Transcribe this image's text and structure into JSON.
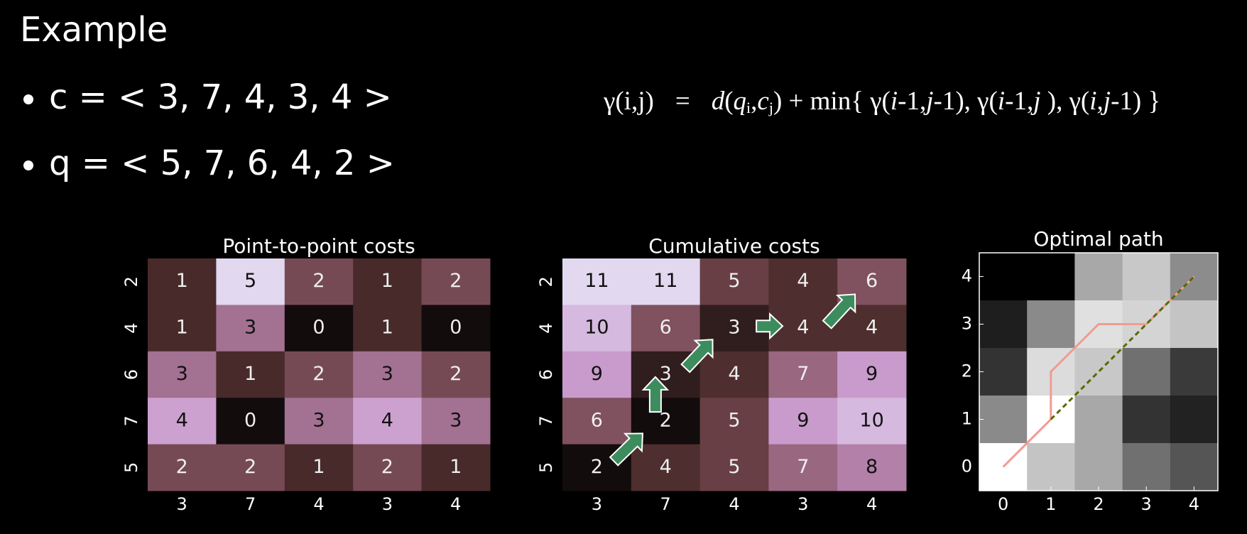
{
  "title": "Example",
  "bullets": [
    "c = < 3, 7, 4, 3, 4 >",
    "q = < 5, 7, 6, 4, 2 >"
  ],
  "formula": [
    "γ(i,j)",
    "=",
    "d",
    "(",
    "q",
    "i",
    ",",
    "c",
    "j",
    ") + min{ γ(",
    "i",
    "-1,",
    "j",
    "-1), γ(",
    "i",
    "-1,",
    "j",
    " ), γ(",
    "i",
    ",",
    "j",
    "-1) }"
  ],
  "chart_data": [
    {
      "type": "heatmap",
      "title": "Point-to-point costs",
      "x_categories": [
        "3",
        "7",
        "4",
        "3",
        "4"
      ],
      "y_categories": [
        "2",
        "4",
        "6",
        "7",
        "5"
      ],
      "values": [
        [
          1,
          5,
          2,
          1,
          2
        ],
        [
          1,
          3,
          0,
          1,
          0
        ],
        [
          3,
          1,
          2,
          3,
          2
        ],
        [
          4,
          0,
          3,
          4,
          3
        ],
        [
          2,
          2,
          1,
          2,
          1
        ]
      ]
    },
    {
      "type": "heatmap",
      "title": "Cumulative costs",
      "x_categories": [
        "3",
        "7",
        "4",
        "3",
        "4"
      ],
      "y_categories": [
        "2",
        "4",
        "6",
        "7",
        "5"
      ],
      "values": [
        [
          11,
          11,
          5,
          4,
          6
        ],
        [
          10,
          6,
          3,
          4,
          4
        ],
        [
          9,
          3,
          4,
          7,
          9
        ],
        [
          6,
          2,
          5,
          9,
          10
        ],
        [
          2,
          4,
          5,
          7,
          8
        ]
      ]
    },
    {
      "type": "path",
      "title": "Optimal path",
      "xlim": [
        -0.5,
        4.5
      ],
      "ylim": [
        -0.5,
        4.5
      ],
      "xticks": [
        0,
        1,
        2,
        3,
        4
      ],
      "yticks": [
        0,
        1,
        2,
        3,
        4
      ],
      "cell_colors": [
        [
          "#000000",
          "#000000",
          "#a8a8a8",
          "#c8c8c8",
          "#8c8c8c"
        ],
        [
          "#1e1e1e",
          "#8a8a8a",
          "#e0e0e0",
          "#d4d4d4",
          "#c4c4c4"
        ],
        [
          "#333333",
          "#dcdcdc",
          "#c8c8c8",
          "#707070",
          "#3a3a3a"
        ],
        [
          "#8a8a8a",
          "#ffffff",
          "#a8a8a8",
          "#333333",
          "#222222"
        ],
        [
          "#ffffff",
          "#c4c4c4",
          "#a8a8a8",
          "#707070",
          "#555555"
        ]
      ],
      "series": [
        {
          "color": "#f29a90",
          "x": [
            0,
            1,
            1,
            2,
            3,
            4
          ],
          "y": [
            0,
            1,
            2,
            3,
            3,
            4
          ]
        },
        {
          "color": "#556b00",
          "dashed": true,
          "x": [
            1,
            4
          ],
          "y": [
            1,
            4
          ]
        }
      ]
    }
  ]
}
